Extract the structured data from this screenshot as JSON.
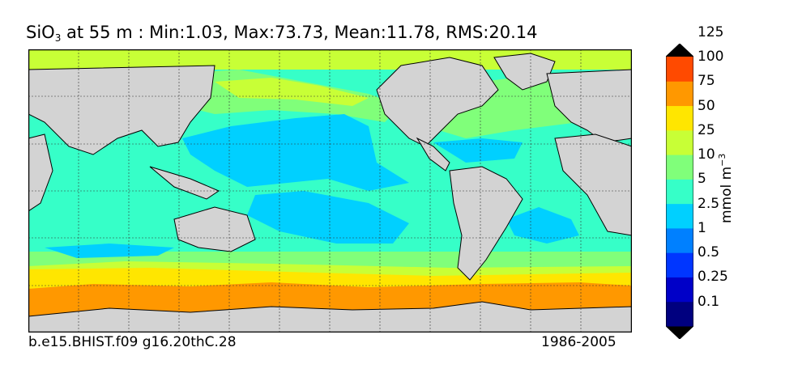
{
  "title": {
    "species": "SiO",
    "subscript": "3",
    "rest": " at 55 m : Min:1.03, Max:73.73, Mean:11.78, RMS:20.14"
  },
  "footer": {
    "case": "b.e15.BHIST.f09 g16.20thC.28",
    "period": "1986-2005"
  },
  "colorbar": {
    "units_main": "mmol m",
    "units_sup": "−3",
    "levels": [
      "0.1",
      "0.25",
      "0.5",
      "1",
      "2.5",
      "5",
      "10",
      "25",
      "50",
      "75",
      "100",
      "125"
    ],
    "colors": [
      "#00007f",
      "#0000c8",
      "#0036ff",
      "#0080ff",
      "#00d0ff",
      "#36ffc8",
      "#80ff7a",
      "#c8ff36",
      "#ffe600",
      "#ff9800",
      "#ff4a00",
      "#e60000",
      "#7f0000"
    ]
  },
  "map_colors": {
    "land": "#d3d3d3",
    "ice_gap": "#ffffff"
  }
}
